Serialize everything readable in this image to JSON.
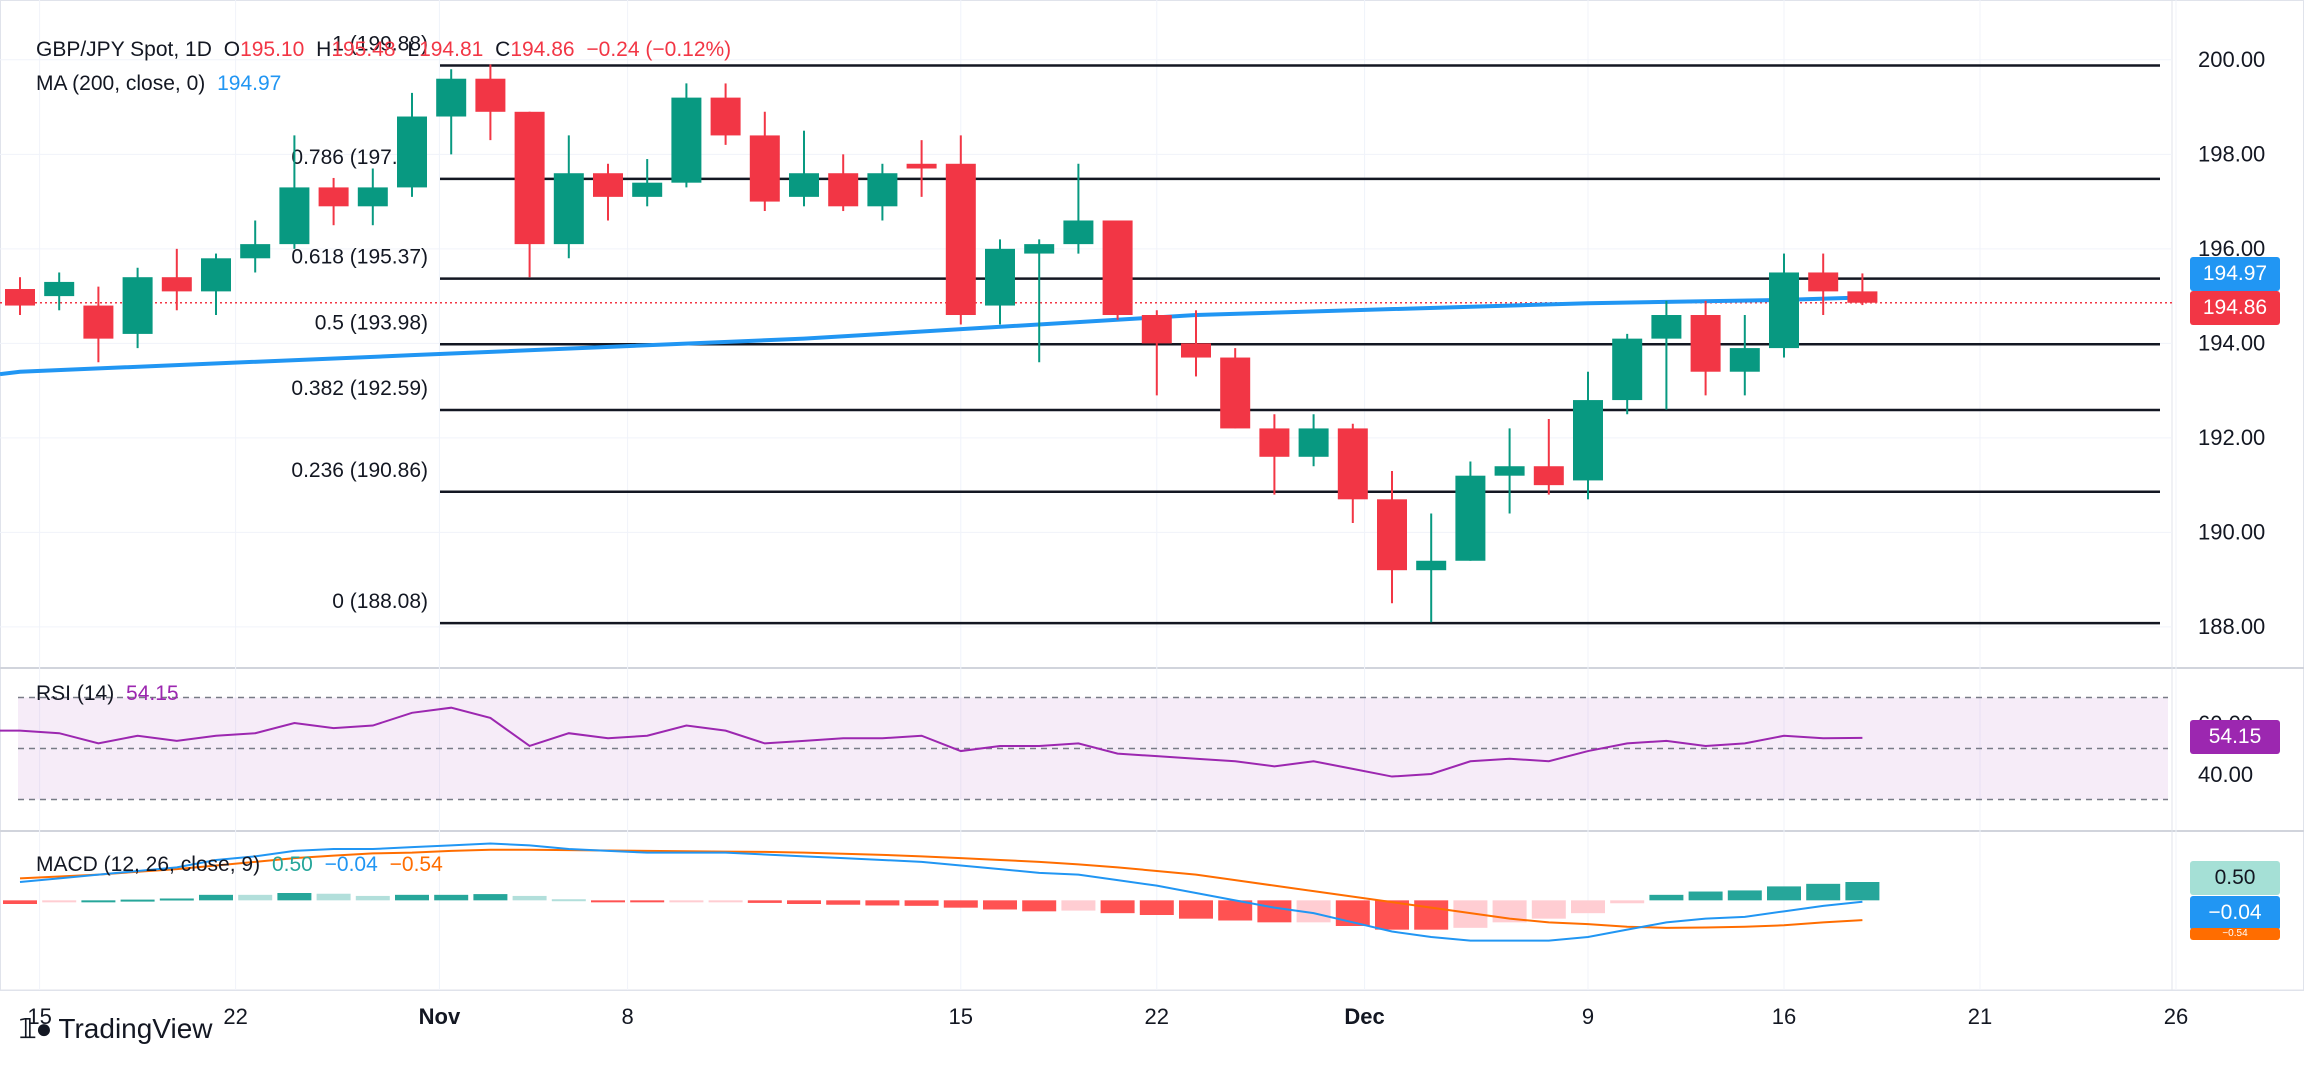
{
  "header": {
    "symbol": "GBP/JPY Spot, 1D",
    "open_label": "O",
    "open": "195.10",
    "high_label": "H",
    "high": "195.48",
    "low_label": "L",
    "low": "194.81",
    "close_label": "C",
    "close": "194.86",
    "change": "−0.24 (−0.12%)"
  },
  "ma_legend": {
    "label": "MA (200, close, 0)",
    "value": "194.97"
  },
  "rsi_legend": {
    "label": "RSI (14)",
    "value": "54.15"
  },
  "macd_legend": {
    "label": "MACD (12, 26, close, 9)",
    "hist": "0.50",
    "macd": "−0.04",
    "signal": "−0.54"
  },
  "price_badges": {
    "ma": "194.97",
    "close": "194.86"
  },
  "rsi_badge": "54.15",
  "macd_badges": {
    "hist": "0.50",
    "macd": "−0.04",
    "signal": "−0.54"
  },
  "colors": {
    "up": "#089981",
    "down": "#f23645",
    "ma": "#2196f3",
    "rsi": "#9c27b0",
    "signal": "#ff6d00",
    "fib": "#131722"
  },
  "brand": "TradingView",
  "chart_data": {
    "type": "candlestick",
    "title": "GBP/JPY Spot, 1D",
    "x_tick_labels": [
      "15",
      "22",
      "Nov",
      "8",
      "15",
      "22",
      "Dec",
      "9",
      "16",
      "21",
      "26"
    ],
    "y_tick_labels": [
      "200.00",
      "198.00",
      "196.00",
      "194.00",
      "192.00",
      "190.00",
      "188.00"
    ],
    "ylim": [
      187.3,
      200.8
    ],
    "candles": [
      {
        "d": "Oct 14",
        "o": 195.15,
        "h": 195.4,
        "l": 194.6,
        "c": 194.8
      },
      {
        "d": "Oct 15",
        "o": 195.0,
        "h": 195.5,
        "l": 194.7,
        "c": 195.3
      },
      {
        "d": "Oct 16",
        "o": 194.8,
        "h": 195.2,
        "l": 193.6,
        "c": 194.1
      },
      {
        "d": "Oct 17",
        "o": 194.2,
        "h": 195.6,
        "l": 193.9,
        "c": 195.4
      },
      {
        "d": "Oct 18",
        "o": 195.4,
        "h": 196.0,
        "l": 194.7,
        "c": 195.1
      },
      {
        "d": "Oct 21",
        "o": 195.1,
        "h": 195.9,
        "l": 194.6,
        "c": 195.8
      },
      {
        "d": "Oct 22",
        "o": 195.8,
        "h": 196.6,
        "l": 195.5,
        "c": 196.1
      },
      {
        "d": "Oct 23",
        "o": 196.1,
        "h": 198.4,
        "l": 196.0,
        "c": 197.3
      },
      {
        "d": "Oct 24",
        "o": 197.3,
        "h": 197.5,
        "l": 196.5,
        "c": 196.9
      },
      {
        "d": "Oct 25",
        "o": 196.9,
        "h": 197.7,
        "l": 196.5,
        "c": 197.3
      },
      {
        "d": "Oct 28",
        "o": 197.3,
        "h": 199.3,
        "l": 197.1,
        "c": 198.8
      },
      {
        "d": "Oct 29",
        "o": 198.8,
        "h": 199.8,
        "l": 198.0,
        "c": 199.6
      },
      {
        "d": "Oct 30",
        "o": 199.6,
        "h": 199.9,
        "l": 198.3,
        "c": 198.9
      },
      {
        "d": "Oct 31",
        "o": 198.9,
        "h": 198.9,
        "l": 195.4,
        "c": 196.1
      },
      {
        "d": "Nov 1",
        "o": 196.1,
        "h": 198.4,
        "l": 195.8,
        "c": 197.6
      },
      {
        "d": "Nov 4",
        "o": 197.6,
        "h": 197.8,
        "l": 196.6,
        "c": 197.1
      },
      {
        "d": "Nov 5",
        "o": 197.1,
        "h": 197.9,
        "l": 196.9,
        "c": 197.4
      },
      {
        "d": "Nov 6",
        "o": 197.4,
        "h": 199.5,
        "l": 197.3,
        "c": 199.2
      },
      {
        "d": "Nov 7",
        "o": 199.2,
        "h": 199.5,
        "l": 198.2,
        "c": 198.4
      },
      {
        "d": "Nov 8",
        "o": 198.4,
        "h": 198.9,
        "l": 196.8,
        "c": 197.0
      },
      {
        "d": "Nov 11",
        "o": 197.1,
        "h": 198.5,
        "l": 196.9,
        "c": 197.6
      },
      {
        "d": "Nov 12",
        "o": 197.6,
        "h": 198.0,
        "l": 196.8,
        "c": 196.9
      },
      {
        "d": "Nov 13",
        "o": 196.9,
        "h": 197.8,
        "l": 196.6,
        "c": 197.6
      },
      {
        "d": "Nov 14",
        "o": 197.8,
        "h": 198.3,
        "l": 197.1,
        "c": 197.7
      },
      {
        "d": "Nov 15",
        "o": 197.8,
        "h": 198.4,
        "l": 194.4,
        "c": 194.6
      },
      {
        "d": "Nov 18",
        "o": 194.8,
        "h": 196.2,
        "l": 194.4,
        "c": 196.0
      },
      {
        "d": "Nov 19",
        "o": 195.9,
        "h": 196.2,
        "l": 193.6,
        "c": 196.1
      },
      {
        "d": "Nov 20",
        "o": 196.1,
        "h": 197.8,
        "l": 195.9,
        "c": 196.6
      },
      {
        "d": "Nov 21",
        "o": 196.6,
        "h": 196.6,
        "l": 194.5,
        "c": 194.6
      },
      {
        "d": "Nov 22",
        "o": 194.6,
        "h": 194.7,
        "l": 192.9,
        "c": 194.0
      },
      {
        "d": "Nov 25",
        "o": 194.0,
        "h": 194.7,
        "l": 193.3,
        "c": 193.7
      },
      {
        "d": "Nov 26",
        "o": 193.7,
        "h": 193.9,
        "l": 192.2,
        "c": 192.2
      },
      {
        "d": "Nov 27",
        "o": 192.2,
        "h": 192.5,
        "l": 190.8,
        "c": 191.6
      },
      {
        "d": "Nov 28",
        "o": 191.6,
        "h": 192.5,
        "l": 191.4,
        "c": 192.2
      },
      {
        "d": "Nov 29",
        "o": 192.2,
        "h": 192.3,
        "l": 190.2,
        "c": 190.7
      },
      {
        "d": "Dec 2",
        "o": 190.7,
        "h": 191.3,
        "l": 188.5,
        "c": 189.2
      },
      {
        "d": "Dec 3",
        "o": 189.2,
        "h": 190.4,
        "l": 188.1,
        "c": 189.4
      },
      {
        "d": "Dec 4",
        "o": 189.4,
        "h": 191.5,
        "l": 189.4,
        "c": 191.2
      },
      {
        "d": "Dec 5",
        "o": 191.2,
        "h": 192.2,
        "l": 190.4,
        "c": 191.4
      },
      {
        "d": "Dec 6",
        "o": 191.4,
        "h": 192.4,
        "l": 190.8,
        "c": 191.0
      },
      {
        "d": "Dec 9",
        "o": 191.1,
        "h": 193.4,
        "l": 190.7,
        "c": 192.8
      },
      {
        "d": "Dec 10",
        "o": 192.8,
        "h": 194.2,
        "l": 192.5,
        "c": 194.1
      },
      {
        "d": "Dec 11",
        "o": 194.1,
        "h": 194.9,
        "l": 192.6,
        "c": 194.6
      },
      {
        "d": "Dec 12",
        "o": 194.6,
        "h": 194.9,
        "l": 192.9,
        "c": 193.4
      },
      {
        "d": "Dec 13",
        "o": 193.4,
        "h": 194.6,
        "l": 192.9,
        "c": 193.9
      },
      {
        "d": "Dec 16",
        "o": 193.9,
        "h": 195.9,
        "l": 193.7,
        "c": 195.5
      },
      {
        "d": "Dec 17",
        "o": 195.5,
        "h": 195.9,
        "l": 194.6,
        "c": 195.1
      },
      {
        "d": "Dec 18",
        "o": 195.1,
        "h": 195.48,
        "l": 194.81,
        "c": 194.86
      }
    ],
    "ma200": [
      [
        0,
        193.4
      ],
      [
        10,
        193.75
      ],
      [
        20,
        194.1
      ],
      [
        30,
        194.6
      ],
      [
        40,
        194.85
      ],
      [
        45,
        194.92
      ],
      [
        47,
        194.97
      ]
    ],
    "fib_levels": [
      {
        "label": "1 (199.88)",
        "value": 199.88
      },
      {
        "label": "0.786 (197.48)",
        "value": 197.48
      },
      {
        "label": "0.618 (195.37)",
        "value": 195.37
      },
      {
        "label": "0.5 (193.98)",
        "value": 193.98
      },
      {
        "label": "0.382 (192.59)",
        "value": 192.59
      },
      {
        "label": "0.236 (190.86)",
        "value": 190.86
      },
      {
        "label": "0 (188.08)",
        "value": 188.08
      }
    ],
    "rsi": [
      57,
      56,
      52,
      55,
      53,
      55,
      56,
      60,
      58,
      59,
      64,
      66,
      62,
      51,
      56,
      54,
      55,
      59,
      57,
      52,
      53,
      54,
      54,
      55,
      49,
      51,
      51,
      52,
      48,
      47,
      46,
      45,
      43,
      45,
      42,
      39,
      40,
      45,
      46,
      45,
      49,
      52,
      53,
      51,
      52,
      55,
      54,
      54.15
    ],
    "rsi_ylim": [
      20,
      80
    ],
    "rsi_band": [
      30,
      70
    ],
    "rsi_ticks": [
      "60.00",
      "40.00"
    ],
    "macd": [
      0.5,
      0.6,
      0.7,
      0.8,
      0.9,
      1.1,
      1.2,
      1.35,
      1.4,
      1.4,
      1.45,
      1.5,
      1.55,
      1.5,
      1.4,
      1.35,
      1.3,
      1.3,
      1.3,
      1.25,
      1.2,
      1.15,
      1.1,
      1.05,
      0.95,
      0.85,
      0.75,
      0.7,
      0.55,
      0.4,
      0.2,
      0.0,
      -0.2,
      -0.35,
      -0.6,
      -0.85,
      -1.0,
      -1.1,
      -1.1,
      -1.1,
      -1.0,
      -0.8,
      -0.6,
      -0.5,
      -0.45,
      -0.3,
      -0.15,
      -0.04
    ],
    "signal": [
      0.6,
      0.65,
      0.7,
      0.78,
      0.85,
      0.95,
      1.05,
      1.15,
      1.22,
      1.28,
      1.3,
      1.35,
      1.38,
      1.38,
      1.37,
      1.36,
      1.35,
      1.34,
      1.33,
      1.32,
      1.3,
      1.27,
      1.24,
      1.2,
      1.15,
      1.1,
      1.05,
      0.98,
      0.9,
      0.8,
      0.7,
      0.55,
      0.4,
      0.25,
      0.1,
      -0.05,
      -0.2,
      -0.35,
      -0.5,
      -0.6,
      -0.65,
      -0.72,
      -0.75,
      -0.74,
      -0.72,
      -0.68,
      -0.6,
      -0.54
    ],
    "macd_ylim": [
      -1.3,
      1.7
    ]
  }
}
